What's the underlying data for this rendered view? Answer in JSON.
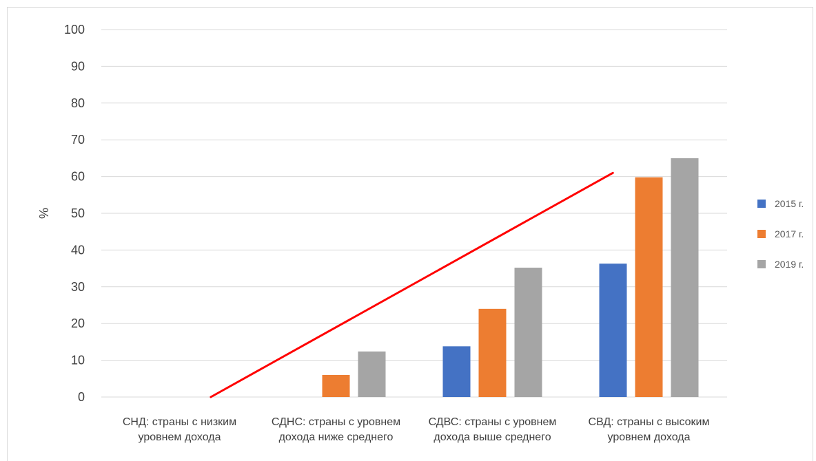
{
  "chart_data": {
    "type": "bar",
    "title": "",
    "xlabel": "",
    "ylabel": "%",
    "ylim": [
      0,
      100
    ],
    "yticks": [
      0,
      10,
      20,
      30,
      40,
      50,
      60,
      70,
      80,
      90,
      100
    ],
    "grid": true,
    "legend_position": "right",
    "categories": [
      [
        "СНД: страны с низким",
        "уровнем дохода"
      ],
      [
        "СДНС: страны с уровнем",
        "дохода ниже среднего"
      ],
      [
        "СДВС: страны с уровнем",
        "дохода выше среднего"
      ],
      [
        "СВД: страны с высоким",
        "уровнем дохода"
      ]
    ],
    "series": [
      {
        "name": "2015 г.",
        "color": "#4472c4",
        "values": [
          0,
          0,
          13.8,
          36.3
        ]
      },
      {
        "name": "2017 г.",
        "color": "#ed7d31",
        "values": [
          0,
          6.0,
          24.0,
          59.8
        ]
      },
      {
        "name": "2019 г.",
        "color": "#a5a5a5",
        "values": [
          0,
          12.4,
          35.2,
          65.0
        ]
      }
    ],
    "annotations": [
      {
        "type": "trend-line",
        "color": "#ff0000",
        "from": {
          "category_index": 0.7,
          "y": 0
        },
        "to": {
          "category_index": 3.27,
          "y": 61
        }
      }
    ]
  }
}
